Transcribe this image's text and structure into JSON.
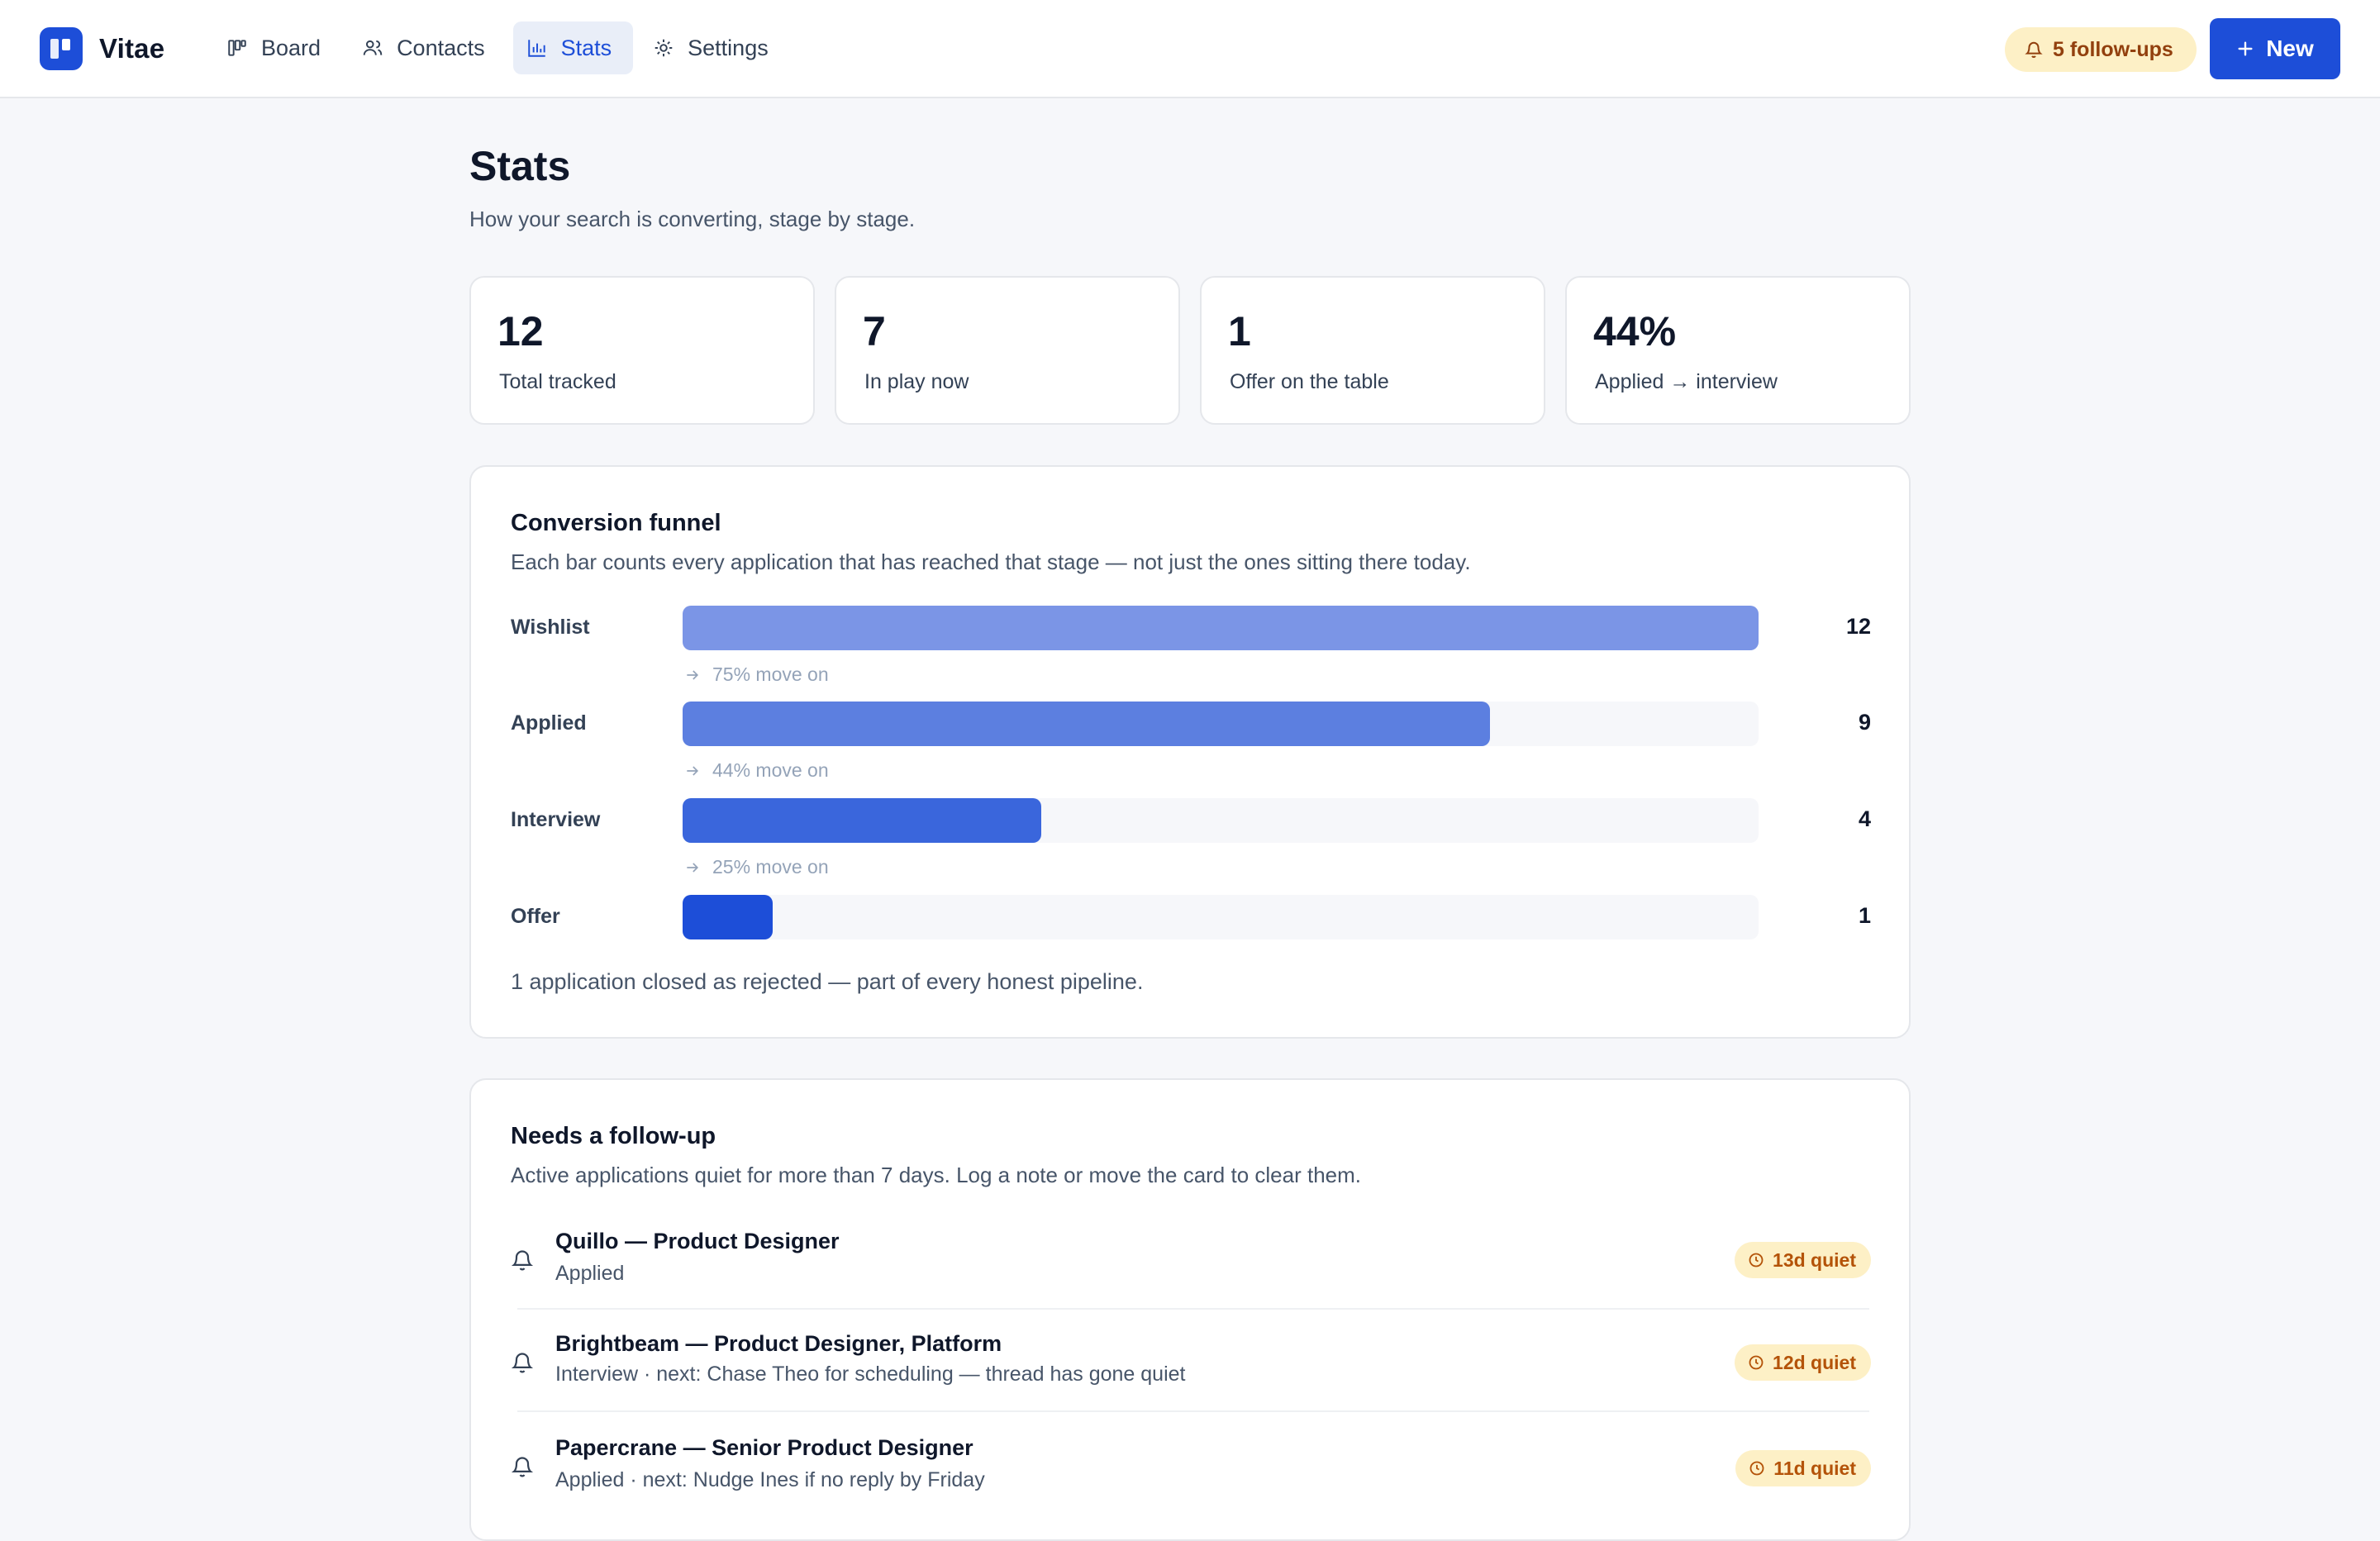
{
  "app": {
    "name": "Vitae"
  },
  "nav": [
    {
      "label": "Board",
      "icon": "board-icon",
      "active": false
    },
    {
      "label": "Contacts",
      "icon": "contacts-icon",
      "active": false
    },
    {
      "label": "Stats",
      "icon": "chart-icon",
      "active": true
    },
    {
      "label": "Settings",
      "icon": "gear-icon",
      "active": false
    }
  ],
  "header": {
    "followups_label": "5 follow-ups",
    "new_label": "New"
  },
  "page": {
    "title": "Stats",
    "subtitle": "How your search is converting, stage by stage."
  },
  "kpis": [
    {
      "value": "12",
      "label": "Total tracked"
    },
    {
      "value": "7",
      "label": "In play now"
    },
    {
      "value": "1",
      "label": "Offer on the table"
    },
    {
      "value": "44%",
      "label": "Applied → interview"
    }
  ],
  "funnel": {
    "title": "Conversion funnel",
    "subtitle": "Each bar counts every application that has reached that stage — not just the ones sitting there today.",
    "max": 12,
    "stages": [
      {
        "label": "Wishlist",
        "count": 12,
        "color": "#7b95e6"
      },
      {
        "label": "Applied",
        "count": 9,
        "color": "#5c7fe0"
      },
      {
        "label": "Interview",
        "count": 4,
        "color": "#3a66dc"
      },
      {
        "label": "Offer",
        "count": 1,
        "color": "#1d4ed8"
      }
    ],
    "moveon": [
      "75% move on",
      "44% move on",
      "25% move on"
    ],
    "footer": "1 application closed as rejected — part of every honest pipeline."
  },
  "followups": {
    "title": "Needs a follow-up",
    "subtitle": "Active applications quiet for more than 7 days. Log a note or move the card to clear them.",
    "items": [
      {
        "title": "Quillo — Product Designer",
        "sub": "Applied",
        "badge": "13d quiet"
      },
      {
        "title": "Brightbeam — Product Designer, Platform",
        "sub": "Interview · next: Chase Theo for scheduling — thread has gone quiet",
        "badge": "12d quiet"
      },
      {
        "title": "Papercrane — Senior Product Designer",
        "sub": "Applied · next: Nudge Ines if no reply by Friday",
        "badge": "11d quiet"
      }
    ]
  }
}
